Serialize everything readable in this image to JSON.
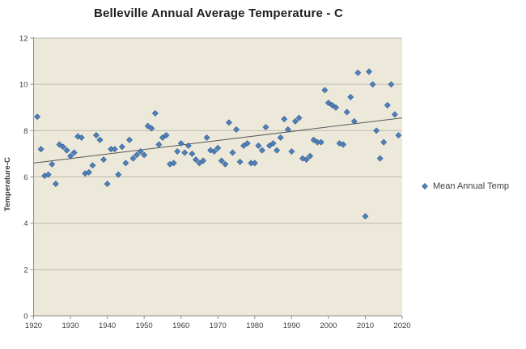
{
  "title": "Belleville Annual Average Temperature - C",
  "y_axis_title": "Temperature-C",
  "legend": {
    "label": "Mean Annual Temp"
  },
  "chart_data": {
    "type": "scatter",
    "title": "Belleville Annual Average Temperature - C",
    "xlabel": "",
    "ylabel": "Temperature-C",
    "series_name": "Mean Annual Temp",
    "xlim": [
      1920,
      2020
    ],
    "ylim": [
      0,
      12
    ],
    "x_ticks": [
      1920,
      1930,
      1940,
      1950,
      1960,
      1970,
      1980,
      1990,
      2000,
      2010,
      2020
    ],
    "y_ticks": [
      0,
      2,
      4,
      6,
      8,
      10,
      12
    ],
    "grid": true,
    "legend_position": "right",
    "x": [
      1921,
      1922,
      1923,
      1924,
      1925,
      1926,
      1927,
      1928,
      1929,
      1930,
      1931,
      1932,
      1933,
      1934,
      1935,
      1936,
      1937,
      1938,
      1939,
      1940,
      1941,
      1942,
      1943,
      1944,
      1945,
      1946,
      1947,
      1948,
      1949,
      1950,
      1951,
      1952,
      1953,
      1954,
      1955,
      1956,
      1957,
      1958,
      1959,
      1960,
      1961,
      1962,
      1963,
      1964,
      1965,
      1966,
      1967,
      1968,
      1969,
      1970,
      1971,
      1972,
      1973,
      1974,
      1975,
      1976,
      1977,
      1978,
      1979,
      1980,
      1981,
      1982,
      1983,
      1984,
      1985,
      1986,
      1987,
      1988,
      1989,
      1990,
      1991,
      1992,
      1993,
      1994,
      1995,
      1996,
      1997,
      1998,
      1999,
      2000,
      2001,
      2002,
      2003,
      2004,
      2005,
      2006,
      2007,
      2008,
      2010,
      2011,
      2012,
      2013,
      2014,
      2015,
      2016,
      2017,
      2018,
      2019
    ],
    "y": [
      8.6,
      7.2,
      6.05,
      6.1,
      6.55,
      5.7,
      7.4,
      7.3,
      7.15,
      6.9,
      7.05,
      7.75,
      7.7,
      6.15,
      6.2,
      6.5,
      7.8,
      7.6,
      6.75,
      5.7,
      7.2,
      7.2,
      6.1,
      7.3,
      6.6,
      7.6,
      6.8,
      6.95,
      7.1,
      6.95,
      8.2,
      8.1,
      8.75,
      7.4,
      7.7,
      7.8,
      6.55,
      6.6,
      7.1,
      7.45,
      7.05,
      7.35,
      7.0,
      6.75,
      6.6,
      6.7,
      7.7,
      7.15,
      7.1,
      7.25,
      6.7,
      6.55,
      8.35,
      7.05,
      8.05,
      6.65,
      7.35,
      7.45,
      6.6,
      6.6,
      7.35,
      7.15,
      8.15,
      7.35,
      7.45,
      7.15,
      7.7,
      8.5,
      8.05,
      7.1,
      8.4,
      8.55,
      6.8,
      6.75,
      6.9,
      7.6,
      7.5,
      7.5,
      9.75,
      9.2,
      9.1,
      9.0,
      7.45,
      7.4,
      8.8,
      9.45,
      8.4,
      10.5,
      4.3,
      10.55,
      10.0,
      8.0,
      6.8,
      7.5,
      9.1,
      10.0,
      8.7,
      7.8
    ],
    "trend_line": {
      "x": [
        1920,
        2020
      ],
      "y": [
        6.6,
        8.55
      ]
    },
    "colors": {
      "marker_fill": "#4F81BD",
      "marker_border": "#3A6597",
      "trend_line": "#595959",
      "plot_background": "#ECE8DA",
      "gridline": "#BFBCAE",
      "axis_line": "#8C8C8C",
      "tick_label": "#404040",
      "title_text": "#1F1F1F"
    }
  }
}
